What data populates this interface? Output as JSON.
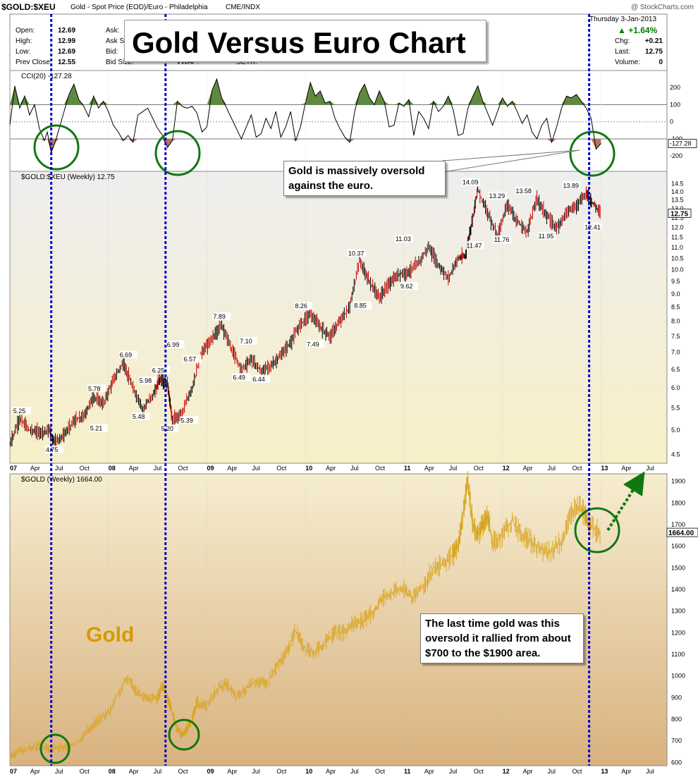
{
  "header": {
    "symbol": "$GOLD:$XEU",
    "description": "Gold - Spot Price (EOD)/Euro - Philadelphia",
    "exchange": "CME/INDX",
    "watermark": "@ StockCharts.com",
    "date": "Thursday  3-Jan-2013",
    "change_pct": "+1.64%",
    "stats_left": [
      {
        "label": "Open:",
        "value": "12.69"
      },
      {
        "label": "High:",
        "value": "12.99"
      },
      {
        "label": "Low:",
        "value": "12.69"
      },
      {
        "label": "Prev Close:",
        "value": "12.55"
      }
    ],
    "stats_mid": [
      "Ask:",
      "Ask Si",
      "Bid:",
      "Bid Size:"
    ],
    "stats_mid2": [
      "VWAP:",
      "SCTR:"
    ],
    "stats_right": [
      {
        "label": "Chg:",
        "value": "+0.21"
      },
      {
        "label": "Last:",
        "value": "12.75"
      },
      {
        "label": "Volume:",
        "value": "0"
      }
    ]
  },
  "annotations": {
    "title": "Gold Versus Euro Chart",
    "oversold_note": "Gold is massively oversold\nagainst the euro.",
    "last_time_note": "The last time gold was this\noversold it rallied from about\n$700 to the $1900 area.",
    "gold_label": "Gold"
  },
  "colors": {
    "up_candle": "#000000",
    "down_candle": "#cc0000",
    "gold_line": "#d9a520",
    "cci_fill_pos": "#5f8a3e",
    "cci_fill_neg": "#b8735a",
    "vline": "#0000cc",
    "circle": "#117711",
    "arrow": "#117711",
    "price_bg_top": "#eeeeee",
    "price_bg_bottom": "#f7efc7",
    "gold_bg_top": "#f6edd0",
    "gold_bg_bottom": "#d9b27f"
  },
  "chart_data": [
    {
      "type": "line",
      "title": "CCI(20) -127.28",
      "ylim": [
        -290,
        300
      ],
      "ticks": [
        200,
        100,
        0,
        -100,
        -200
      ],
      "tick_labels": [
        "200",
        "100",
        "0",
        "-100",
        "-200"
      ],
      "last_label": "-127.28",
      "reference_lines": [
        100,
        0,
        -100
      ],
      "x": [
        2007.0,
        2007.05,
        2007.1,
        2007.15,
        2007.2,
        2007.25,
        2007.3,
        2007.35,
        2007.38,
        2007.42,
        2007.46,
        2007.5,
        2007.55,
        2007.6,
        2007.65,
        2007.7,
        2007.75,
        2007.8,
        2007.85,
        2007.9,
        2007.95,
        2008.0,
        2008.05,
        2008.1,
        2008.15,
        2008.2,
        2008.25,
        2008.3,
        2008.35,
        2008.4,
        2008.45,
        2008.5,
        2008.55,
        2008.6,
        2008.65,
        2008.7,
        2008.75,
        2008.8,
        2008.85,
        2008.9,
        2008.95,
        2009.0,
        2009.05,
        2009.1,
        2009.15,
        2009.2,
        2009.25,
        2009.3,
        2009.35,
        2009.4,
        2009.45,
        2009.5,
        2009.55,
        2009.6,
        2009.65,
        2009.7,
        2009.75,
        2009.8,
        2009.85,
        2009.9,
        2009.95,
        2010.0,
        2010.05,
        2010.1,
        2010.15,
        2010.2,
        2010.25,
        2010.3,
        2010.35,
        2010.4,
        2010.45,
        2010.5,
        2010.55,
        2010.6,
        2010.65,
        2010.7,
        2010.75,
        2010.8,
        2010.85,
        2010.9,
        2010.95,
        2011.0,
        2011.05,
        2011.1,
        2011.15,
        2011.2,
        2011.25,
        2011.3,
        2011.35,
        2011.4,
        2011.45,
        2011.5,
        2011.55,
        2011.6,
        2011.65,
        2011.7,
        2011.75,
        2011.8,
        2011.85,
        2011.9,
        2011.95,
        2012.0,
        2012.05,
        2012.1,
        2012.15,
        2012.2,
        2012.25,
        2012.3,
        2012.35,
        2012.4,
        2012.45,
        2012.5,
        2012.55,
        2012.6,
        2012.65,
        2012.7,
        2012.75,
        2012.8,
        2012.85,
        2012.9,
        2012.95,
        2013.0
      ],
      "y": [
        -20,
        210,
        80,
        150,
        40,
        100,
        -40,
        -110,
        -60,
        -180,
        -120,
        -40,
        60,
        160,
        220,
        130,
        90,
        30,
        150,
        80,
        120,
        60,
        -20,
        -60,
        -110,
        -80,
        -120,
        40,
        60,
        80,
        20,
        -40,
        -80,
        -150,
        -110,
        120,
        90,
        80,
        90,
        50,
        -60,
        -30,
        180,
        250,
        140,
        80,
        20,
        -40,
        -100,
        -30,
        40,
        -90,
        -70,
        20,
        -40,
        60,
        -90,
        -30,
        60,
        -110,
        -30,
        110,
        230,
        150,
        180,
        110,
        120,
        20,
        -40,
        -90,
        -120,
        60,
        170,
        220,
        140,
        100,
        180,
        120,
        -30,
        -20,
        110,
        90,
        130,
        -80,
        60,
        20,
        -40,
        120,
        60,
        90,
        150,
        70,
        -80,
        -70,
        80,
        150,
        210,
        120,
        50,
        -20,
        60,
        140,
        90,
        120,
        60,
        -10,
        40,
        -60,
        -100,
        -20,
        20,
        -120,
        -30,
        80,
        150,
        140,
        160,
        120,
        80,
        20,
        -160,
        -127
      ]
    },
    {
      "type": "candlestick",
      "title": "$GOLD:$XEU (Weekly) 12.75",
      "ylim": [
        4.4,
        14.6
      ],
      "log_scale": true,
      "ticks": [
        14.5,
        14.0,
        13.5,
        13.0,
        12.5,
        12.0,
        11.5,
        11.0,
        10.5,
        10.0,
        9.5,
        9.0,
        8.5,
        8.0,
        7.5,
        7.0,
        6.5,
        6.0,
        5.5,
        5.0,
        4.5
      ],
      "tick_labels": [
        "14.5",
        "14.0",
        "13.5",
        "13.0",
        "12.5",
        "12.0",
        "11.5",
        "11.0",
        "10.5",
        "10.0",
        "9.5",
        "9.0",
        "8.5",
        "8.0",
        "7.5",
        "7.0",
        "6.5",
        "6.0",
        "5.5",
        "5.0",
        "4.5"
      ],
      "last_label": "12.75",
      "x": [
        2007.0,
        2007.1,
        2007.2,
        2007.3,
        2007.4,
        2007.45,
        2007.55,
        2007.65,
        2007.75,
        2007.85,
        2007.95,
        2008.05,
        2008.15,
        2008.25,
        2008.35,
        2008.45,
        2008.52,
        2008.6,
        2008.65,
        2008.75,
        2008.85,
        2008.95,
        2009.05,
        2009.15,
        2009.25,
        2009.35,
        2009.45,
        2009.55,
        2009.65,
        2009.75,
        2009.85,
        2009.95,
        2010.05,
        2010.15,
        2010.25,
        2010.35,
        2010.45,
        2010.55,
        2010.65,
        2010.75,
        2010.85,
        2010.95,
        2011.05,
        2011.15,
        2011.25,
        2011.35,
        2011.45,
        2011.55,
        2011.62,
        2011.68,
        2011.75,
        2011.85,
        2011.95,
        2012.05,
        2012.15,
        2012.25,
        2012.35,
        2012.45,
        2012.55,
        2012.65,
        2012.75,
        2012.85,
        2012.92,
        2013.0
      ],
      "y": [
        4.7,
        5.25,
        5.0,
        4.95,
        5.0,
        4.75,
        4.9,
        5.2,
        5.3,
        5.78,
        5.6,
        6.2,
        6.69,
        5.98,
        5.48,
        5.8,
        6.25,
        6.1,
        5.2,
        5.39,
        6.0,
        6.99,
        7.4,
        7.89,
        7.1,
        6.49,
        6.8,
        6.44,
        6.6,
        6.9,
        7.3,
        7.9,
        8.26,
        7.8,
        7.49,
        8.0,
        8.5,
        10.37,
        9.5,
        8.85,
        9.4,
        9.8,
        9.9,
        10.3,
        11.03,
        10.2,
        9.62,
        10.5,
        10.6,
        12.0,
        14.09,
        12.8,
        11.47,
        13.29,
        12.3,
        11.76,
        13.58,
        12.6,
        11.95,
        12.8,
        13.2,
        13.89,
        13.3,
        12.75
      ],
      "data_labels": [
        {
          "x": 2007.12,
          "y": 5.25,
          "text": "5.25"
        },
        {
          "x": 2007.45,
          "y": 4.75,
          "text": "4.75"
        },
        {
          "x": 2007.88,
          "y": 5.78,
          "text": "5.78"
        },
        {
          "x": 2007.9,
          "y": 5.21,
          "text": "5.21"
        },
        {
          "x": 2008.2,
          "y": 6.69,
          "text": "6.69"
        },
        {
          "x": 2008.4,
          "y": 5.98,
          "text": "5.98"
        },
        {
          "x": 2008.33,
          "y": 5.48,
          "text": "5.48"
        },
        {
          "x": 2008.53,
          "y": 6.25,
          "text": "6.25"
        },
        {
          "x": 2008.62,
          "y": 5.2,
          "text": "5.20"
        },
        {
          "x": 2008.82,
          "y": 5.39,
          "text": "5.39"
        },
        {
          "x": 2008.68,
          "y": 6.99,
          "text": "6.99"
        },
        {
          "x": 2008.85,
          "y": 6.57,
          "text": "6.57"
        },
        {
          "x": 2009.15,
          "y": 7.89,
          "text": "7.89"
        },
        {
          "x": 2009.42,
          "y": 7.1,
          "text": "7.10"
        },
        {
          "x": 2009.35,
          "y": 6.49,
          "text": "6.49"
        },
        {
          "x": 2009.55,
          "y": 6.44,
          "text": "6.44"
        },
        {
          "x": 2009.98,
          "y": 8.26,
          "text": "8.26"
        },
        {
          "x": 2010.1,
          "y": 7.49,
          "text": "7.49"
        },
        {
          "x": 2010.52,
          "y": 10.37,
          "text": "10.37"
        },
        {
          "x": 2010.58,
          "y": 8.85,
          "text": "8.85"
        },
        {
          "x": 2011.0,
          "y": 11.03,
          "text": "11.03"
        },
        {
          "x": 2011.05,
          "y": 9.62,
          "text": "9.62"
        },
        {
          "x": 2011.68,
          "y": 14.09,
          "text": "14.09"
        },
        {
          "x": 2011.72,
          "y": 11.47,
          "text": "11.47"
        },
        {
          "x": 2011.95,
          "y": 13.29,
          "text": "13.29"
        },
        {
          "x": 2012.0,
          "y": 11.76,
          "text": "11.76"
        },
        {
          "x": 2012.22,
          "y": 13.58,
          "text": "13.58"
        },
        {
          "x": 2012.45,
          "y": 11.95,
          "text": "11.95"
        },
        {
          "x": 2012.7,
          "y": 13.89,
          "text": "13.89"
        },
        {
          "x": 2012.92,
          "y": 12.41,
          "text": "12.41"
        }
      ]
    },
    {
      "type": "line",
      "title": "$GOLD (Weekly) 1664.00",
      "ylim": [
        585,
        1935
      ],
      "ticks": [
        1900,
        1800,
        1700,
        1600,
        1500,
        1400,
        1300,
        1200,
        1100,
        1000,
        900,
        800,
        700,
        600
      ],
      "tick_labels": [
        "1900",
        "1800",
        "1700",
        "1600",
        "1500",
        "1400",
        "1300",
        "1200",
        "1100",
        "1000",
        "900",
        "800",
        "700",
        "600"
      ],
      "last_label": "1664.00",
      "x": [
        2007.0,
        2007.1,
        2007.2,
        2007.3,
        2007.4,
        2007.5,
        2007.6,
        2007.7,
        2007.8,
        2007.9,
        2008.0,
        2008.1,
        2008.2,
        2008.3,
        2008.4,
        2008.5,
        2008.55,
        2008.6,
        2008.65,
        2008.7,
        2008.75,
        2008.8,
        2008.85,
        2008.9,
        2009.0,
        2009.1,
        2009.2,
        2009.3,
        2009.4,
        2009.5,
        2009.6,
        2009.7,
        2009.8,
        2009.9,
        2010.0,
        2010.1,
        2010.2,
        2010.3,
        2010.4,
        2010.5,
        2010.6,
        2010.7,
        2010.8,
        2010.9,
        2011.0,
        2011.1,
        2011.2,
        2011.3,
        2011.4,
        2011.5,
        2011.55,
        2011.6,
        2011.65,
        2011.7,
        2011.75,
        2011.8,
        2011.85,
        2011.9,
        2012.0,
        2012.1,
        2012.2,
        2012.3,
        2012.4,
        2012.5,
        2012.6,
        2012.7,
        2012.8,
        2012.85,
        2012.9,
        2013.0
      ],
      "y": [
        620,
        655,
        665,
        680,
        660,
        670,
        670,
        700,
        750,
        800,
        830,
        920,
        990,
        920,
        890,
        900,
        960,
        900,
        830,
        750,
        730,
        760,
        800,
        880,
        860,
        940,
        960,
        900,
        940,
        980,
        960,
        1040,
        1100,
        1210,
        1120,
        1110,
        1150,
        1200,
        1200,
        1250,
        1260,
        1300,
        1370,
        1390,
        1400,
        1360,
        1420,
        1500,
        1520,
        1560,
        1600,
        1750,
        1900,
        1700,
        1650,
        1700,
        1750,
        1620,
        1650,
        1720,
        1650,
        1620,
        1580,
        1580,
        1620,
        1760,
        1780,
        1720,
        1690,
        1664
      ]
    }
  ],
  "x_axis": {
    "ticks": [
      2007.0,
      2007.25,
      2007.5,
      2007.75,
      2008.0,
      2008.25,
      2008.5,
      2008.75,
      2009.0,
      2009.25,
      2009.5,
      2009.75,
      2010.0,
      2010.25,
      2010.5,
      2010.75,
      2011.0,
      2011.25,
      2011.5,
      2011.75,
      2012.0,
      2012.25,
      2012.5,
      2012.75,
      2013.0,
      2013.25,
      2013.5
    ],
    "labels": [
      "07",
      "Apr",
      "Jul",
      "Oct",
      "08",
      "Apr",
      "Jul",
      "Oct",
      "09",
      "Apr",
      "Jul",
      "Oct",
      "10",
      "Apr",
      "Jul",
      "Oct",
      "11",
      "Apr",
      "Jul",
      "Oct",
      "12",
      "Apr",
      "Jul",
      "Oct",
      "13",
      "Apr",
      "Jul"
    ],
    "range": [
      2007.0,
      2013.67
    ]
  },
  "markers": {
    "vlines": [
      2007.42,
      2008.58,
      2012.88
    ]
  }
}
